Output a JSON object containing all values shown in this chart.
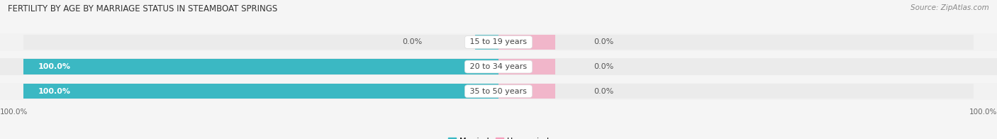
{
  "title": "FERTILITY BY AGE BY MARRIAGE STATUS IN STEAMBOAT SPRINGS",
  "source": "Source: ZipAtlas.com",
  "categories": [
    "15 to 19 years",
    "20 to 34 years",
    "35 to 50 years"
  ],
  "married_values": [
    0.0,
    100.0,
    100.0
  ],
  "unmarried_values": [
    0.0,
    0.0,
    0.0
  ],
  "married_color": "#3bb8c3",
  "unmarried_color": "#f4a0bc",
  "bar_bg_color": "#ebebeb",
  "bar_bg_color2": "#f8f8f8",
  "bar_height": 0.62,
  "title_fontsize": 8.5,
  "source_fontsize": 7.5,
  "label_fontsize": 8,
  "category_fontsize": 8,
  "legend_fontsize": 8,
  "axis_label_fontsize": 7.5,
  "left_axis_label": "100.0%",
  "right_axis_label": "100.0%",
  "background_color": "#f5f5f5",
  "row_bg_colors": [
    "#f0f0f0",
    "#e8e8e8"
  ]
}
